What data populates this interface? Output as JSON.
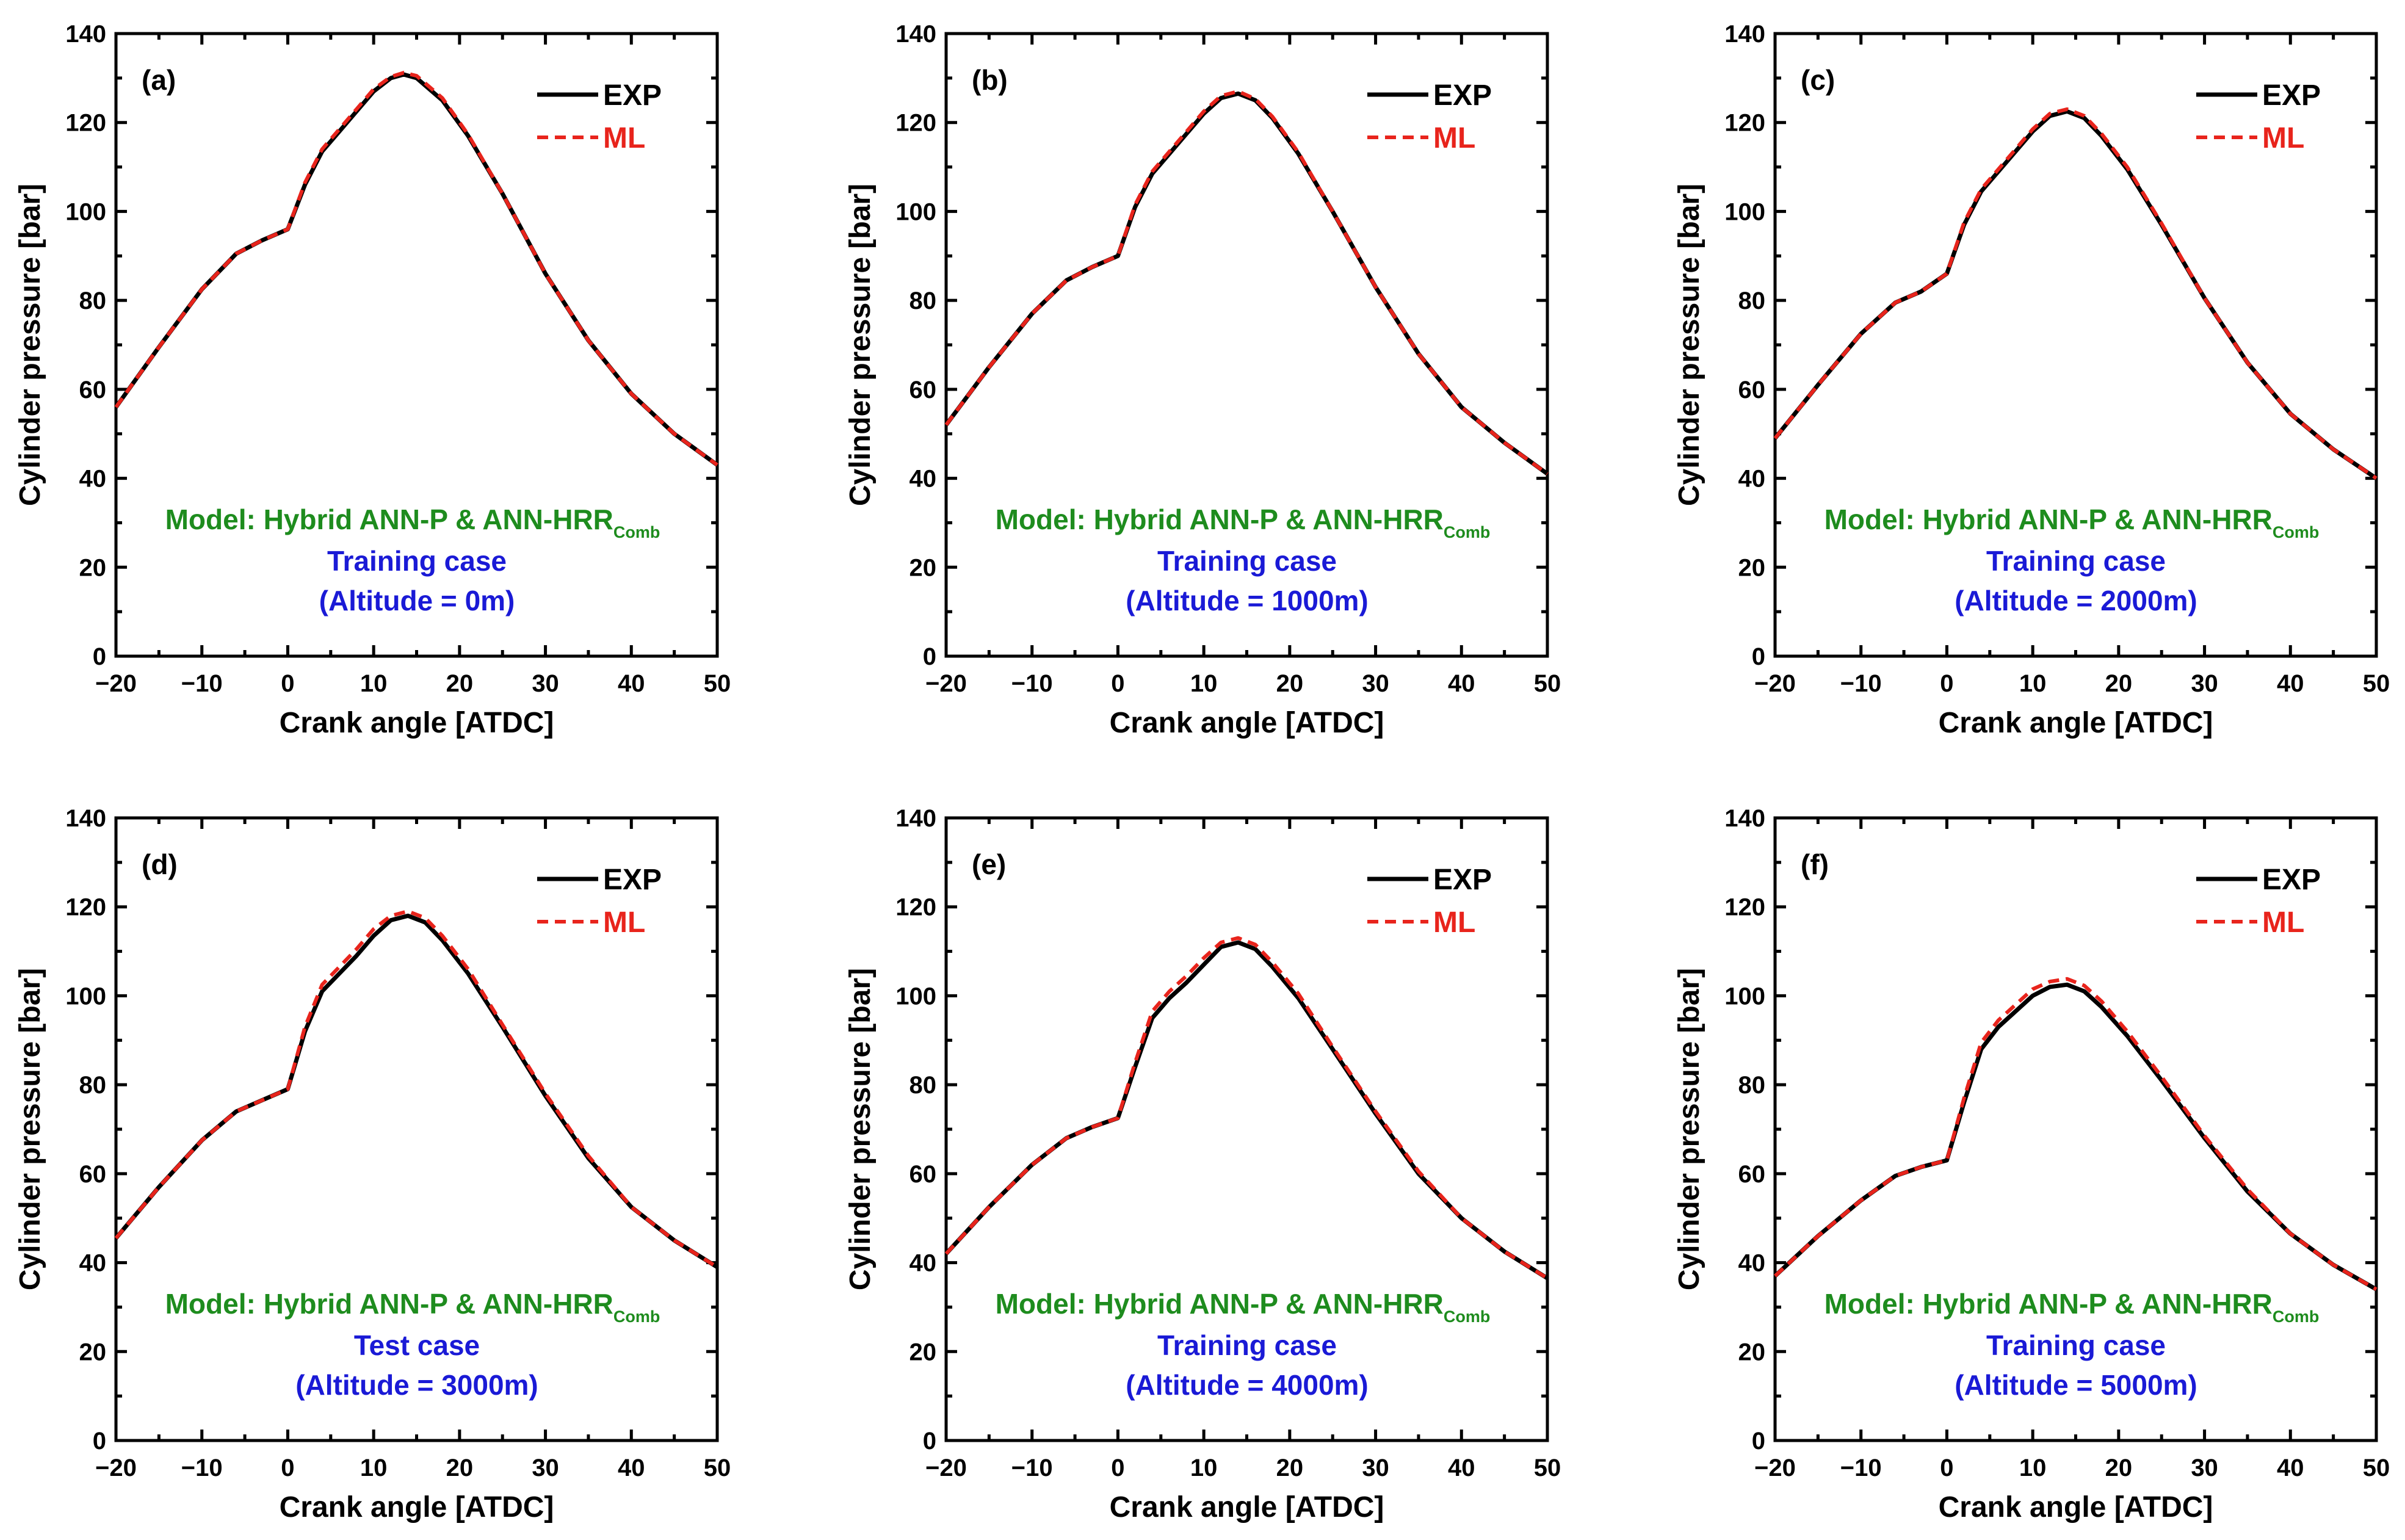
{
  "figure": {
    "xlabel": "Crank angle [ATDC]",
    "ylabel": "Cylinder pressure [bar]",
    "legend": {
      "exp_label": "EXP",
      "ml_label": "ML"
    },
    "model_text": "Model: Hybrid ANN-P & ANN-HRR",
    "model_subscript": "Comb",
    "colors": {
      "exp": "#000000",
      "ml": "#e8241c",
      "model_text": "#1e8c1e",
      "case_text": "#1a1ad6",
      "axis": "#000000"
    }
  },
  "chart_data": [
    {
      "type": "line",
      "label": "(a)",
      "case": "Training case",
      "altitude": "(Altitude = 0m)",
      "xlabel": "Crank angle [ATDC]",
      "ylabel": "Cylinder pressure [bar]",
      "xlim": [
        -20,
        50
      ],
      "ylim": [
        0,
        140
      ],
      "xticks": [
        -20,
        -10,
        0,
        10,
        20,
        30,
        40,
        50
      ],
      "yticks": [
        0,
        20,
        40,
        60,
        80,
        100,
        120,
        140
      ],
      "x": [
        -20,
        -15,
        -10,
        -6,
        -3,
        0,
        2,
        4,
        6,
        8,
        10,
        12,
        13.5,
        15,
        18,
        21,
        25,
        30,
        35,
        40,
        45,
        50
      ],
      "series": [
        {
          "name": "EXP",
          "values": [
            56,
            69.5,
            82.5,
            90.5,
            93.5,
            96,
            106,
            113.5,
            118,
            122.5,
            127,
            130,
            130.8,
            130,
            125,
            117,
            104,
            86,
            71,
            59,
            50,
            43
          ]
        },
        {
          "name": "ML",
          "values": [
            56,
            69.5,
            82.5,
            90.5,
            93.5,
            96,
            106.5,
            114,
            118.5,
            123,
            127.5,
            130.3,
            131.2,
            130.5,
            125.5,
            117.3,
            104,
            86,
            71,
            59,
            50,
            43
          ]
        }
      ]
    },
    {
      "type": "line",
      "label": "(b)",
      "case": "Training case",
      "altitude": "(Altitude = 1000m)",
      "xlabel": "Crank angle [ATDC]",
      "ylabel": "Cylinder pressure [bar]",
      "xlim": [
        -20,
        50
      ],
      "ylim": [
        0,
        140
      ],
      "xticks": [
        -20,
        -10,
        0,
        10,
        20,
        30,
        40,
        50
      ],
      "yticks": [
        0,
        20,
        40,
        60,
        80,
        100,
        120,
        140
      ],
      "x": [
        -20,
        -15,
        -10,
        -6,
        -3,
        0,
        2,
        4,
        6,
        8,
        10,
        12,
        14,
        16,
        18,
        21,
        25,
        30,
        35,
        40,
        45,
        50
      ],
      "series": [
        {
          "name": "EXP",
          "values": [
            52,
            65,
            77,
            84.5,
            87.5,
            90,
            101,
            108.5,
            113,
            117.5,
            122,
            125.5,
            126.5,
            125,
            121,
            113,
            100,
            83,
            68,
            56,
            48,
            41
          ]
        },
        {
          "name": "ML",
          "values": [
            52,
            65,
            77,
            84.5,
            87.5,
            90,
            101.5,
            109,
            113.5,
            118,
            122.5,
            126,
            127,
            125.3,
            121.3,
            113.3,
            100,
            83,
            68,
            56,
            48,
            41
          ]
        }
      ]
    },
    {
      "type": "line",
      "label": "(c)",
      "case": "Training case",
      "altitude": "(Altitude = 2000m)",
      "xlabel": "Crank angle [ATDC]",
      "ylabel": "Cylinder pressure [bar]",
      "xlim": [
        -20,
        50
      ],
      "ylim": [
        0,
        140
      ],
      "xticks": [
        -20,
        -10,
        0,
        10,
        20,
        30,
        40,
        50
      ],
      "yticks": [
        0,
        20,
        40,
        60,
        80,
        100,
        120,
        140
      ],
      "x": [
        -20,
        -15,
        -10,
        -6,
        -3,
        0,
        2,
        4,
        6,
        8,
        10,
        12,
        14,
        16,
        18,
        21,
        25,
        30,
        35,
        40,
        45,
        50
      ],
      "series": [
        {
          "name": "EXP",
          "values": [
            49,
            61,
            72.5,
            79.5,
            82,
            86,
            97,
            104.5,
            109,
            113.5,
            118,
            121.5,
            122.5,
            121,
            117,
            109.5,
            97,
            80.5,
            66,
            54.5,
            46.5,
            40
          ]
        },
        {
          "name": "ML",
          "values": [
            49,
            61,
            72.5,
            79.5,
            82,
            86,
            97.5,
            105,
            109.5,
            114,
            118.5,
            122,
            123,
            121.5,
            117.5,
            110,
            97.3,
            80.5,
            66,
            54.5,
            46.5,
            40
          ]
        }
      ]
    },
    {
      "type": "line",
      "label": "(d)",
      "case": "Test case",
      "altitude": "(Altitude = 3000m)",
      "xlabel": "Crank angle [ATDC]",
      "ylabel": "Cylinder pressure [bar]",
      "xlim": [
        -20,
        50
      ],
      "ylim": [
        0,
        140
      ],
      "xticks": [
        -20,
        -10,
        0,
        10,
        20,
        30,
        40,
        50
      ],
      "yticks": [
        0,
        20,
        40,
        60,
        80,
        100,
        120,
        140
      ],
      "x": [
        -20,
        -15,
        -10,
        -6,
        -3,
        0,
        2,
        4,
        6,
        8,
        10,
        12,
        14,
        16,
        18,
        21,
        25,
        30,
        35,
        40,
        45,
        50
      ],
      "series": [
        {
          "name": "EXP",
          "values": [
            45.5,
            57,
            67.5,
            74,
            76.5,
            79,
            92,
            101,
            105,
            109,
            113.5,
            117,
            118,
            116.5,
            112.5,
            105,
            93,
            77.5,
            63.5,
            52.5,
            45,
            39
          ]
        },
        {
          "name": "ML",
          "values": [
            45.5,
            57,
            67.5,
            74,
            76.5,
            79,
            93,
            102.5,
            106.5,
            110.5,
            115,
            118,
            119,
            117.5,
            113.5,
            106,
            93.5,
            78,
            64,
            52.5,
            45,
            39
          ]
        }
      ]
    },
    {
      "type": "line",
      "label": "(e)",
      "case": "Training case",
      "altitude": "(Altitude = 4000m)",
      "xlabel": "Crank angle [ATDC]",
      "ylabel": "Cylinder pressure [bar]",
      "xlim": [
        -20,
        50
      ],
      "ylim": [
        0,
        140
      ],
      "xticks": [
        -20,
        -10,
        0,
        10,
        20,
        30,
        40,
        50
      ],
      "yticks": [
        0,
        20,
        40,
        60,
        80,
        100,
        120,
        140
      ],
      "x": [
        -20,
        -15,
        -10,
        -6,
        -3,
        0,
        2,
        4,
        6,
        8,
        10,
        12,
        14,
        16,
        18,
        21,
        25,
        30,
        35,
        40,
        45,
        50
      ],
      "series": [
        {
          "name": "EXP",
          "values": [
            42,
            52.5,
            62,
            68,
            70.5,
            72.5,
            84,
            95,
            99.5,
            103,
            107,
            111,
            112,
            110.5,
            106.5,
            99.5,
            88,
            73.5,
            60,
            50,
            42.5,
            36.5
          ]
        },
        {
          "name": "ML",
          "values": [
            42,
            52.5,
            62,
            68,
            70.5,
            72.5,
            85,
            96.5,
            101,
            104.5,
            108.5,
            112,
            113,
            111.5,
            107.5,
            100.5,
            88.5,
            74,
            60.5,
            50,
            42.5,
            36.5
          ]
        }
      ]
    },
    {
      "type": "line",
      "label": "(f)",
      "case": "Training case",
      "altitude": "(Altitude = 5000m)",
      "xlabel": "Crank angle [ATDC]",
      "ylabel": "Cylinder pressure [bar]",
      "xlim": [
        -20,
        50
      ],
      "ylim": [
        0,
        140
      ],
      "xticks": [
        -20,
        -10,
        0,
        10,
        20,
        30,
        40,
        50
      ],
      "yticks": [
        0,
        20,
        40,
        60,
        80,
        100,
        120,
        140
      ],
      "x": [
        -20,
        -15,
        -10,
        -6,
        -3,
        0,
        2,
        4,
        6,
        8,
        10,
        12,
        14,
        16,
        18,
        21,
        25,
        30,
        35,
        40,
        45,
        50
      ],
      "series": [
        {
          "name": "EXP",
          "values": [
            37,
            46,
            54,
            59.5,
            61.5,
            63,
            76,
            88,
            93,
            96.5,
            100,
            102,
            102.5,
            101,
            97.5,
            91,
            81,
            68,
            56,
            46.5,
            39.5,
            34
          ]
        },
        {
          "name": "ML",
          "values": [
            37,
            46,
            54,
            59.5,
            61.5,
            63,
            77,
            89.5,
            94.5,
            98,
            101.5,
            103.2,
            103.8,
            102.3,
            98.8,
            92,
            81.8,
            68.5,
            56.5,
            46.5,
            39.5,
            34
          ]
        }
      ]
    }
  ]
}
